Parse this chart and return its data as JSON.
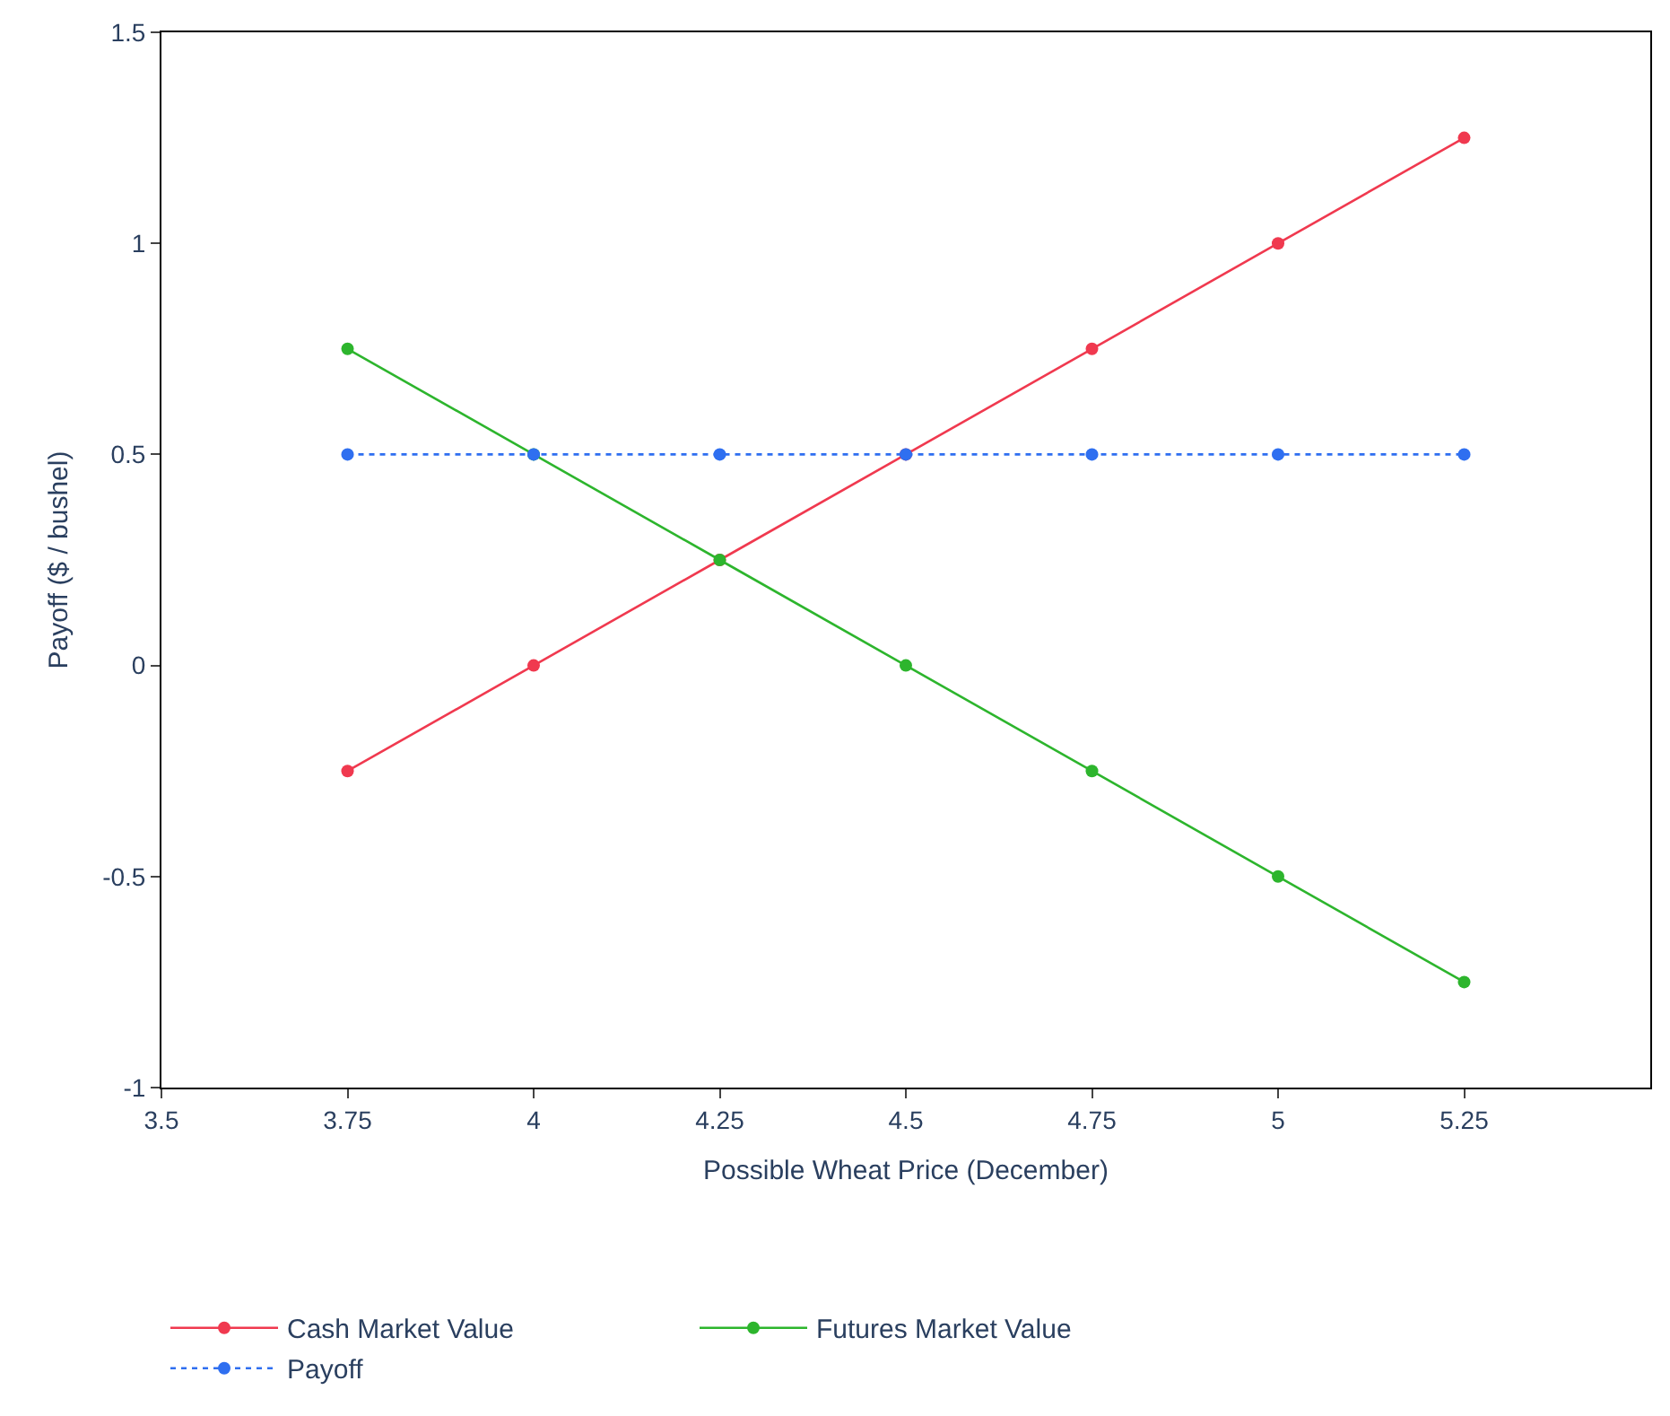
{
  "chart_data": {
    "type": "line",
    "xlabel": "Possible Wheat Price (December)",
    "ylabel": "Payoff ($ / bushel)",
    "x": [
      3.75,
      4,
      4.25,
      4.5,
      4.75,
      5,
      5.25
    ],
    "series": [
      {
        "name": "Cash Market Value",
        "color": "#f0394f",
        "values": [
          -0.25,
          0,
          0.25,
          0.5,
          0.75,
          1,
          1.25
        ]
      },
      {
        "name": "Futures Market Value",
        "color": "#2db52d",
        "values": [
          0.75,
          0.5,
          0.25,
          0,
          -0.25,
          -0.5,
          -0.75
        ]
      },
      {
        "name": "Payoff",
        "color": "#2f6ff0",
        "values": [
          0.5,
          0.5,
          0.5,
          0.5,
          0.5,
          0.5,
          0.5
        ],
        "line_style": "dashed"
      }
    ],
    "xlim": [
      3.5,
      5.5
    ],
    "xticks": [
      3.5,
      3.75,
      4,
      4.25,
      4.5,
      4.75,
      5,
      5.25
    ],
    "ylim": [
      -1,
      1.5
    ],
    "yticks": [
      -1,
      -0.5,
      0,
      0.5,
      1,
      1.5
    ],
    "legend": "bottom",
    "marker": "circle"
  }
}
